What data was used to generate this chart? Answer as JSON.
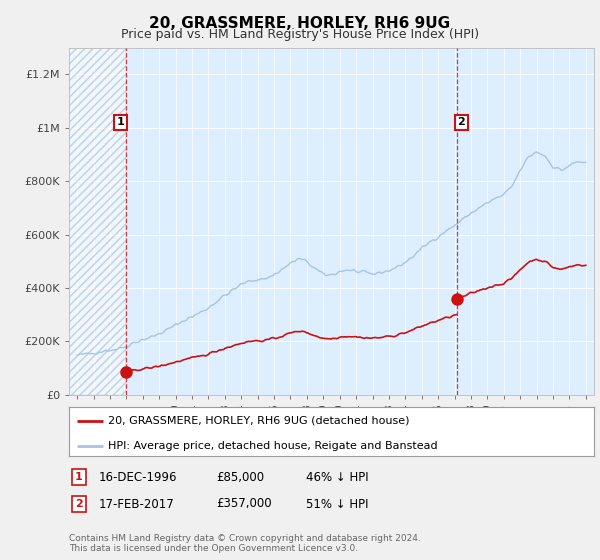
{
  "title": "20, GRASSMERE, HORLEY, RH6 9UG",
  "subtitle": "Price paid vs. HM Land Registry's House Price Index (HPI)",
  "sale1_date": 1996.96,
  "sale1_price": 85000,
  "sale1_label": "1",
  "sale2_date": 2017.12,
  "sale2_price": 357000,
  "sale2_label": "2",
  "hpi_color": "#a8c4e0",
  "price_color": "#cc1111",
  "marker_box_color": "#cc1111",
  "bg_color": "#f0f0f0",
  "plot_bg_color": "#ddeeff",
  "ylim": [
    0,
    1300000
  ],
  "xlim_start": 1993.5,
  "xlim_end": 2025.5,
  "legend_label1": "20, GRASSMERE, HORLEY, RH6 9UG (detached house)",
  "legend_label2": "HPI: Average price, detached house, Reigate and Banstead",
  "footer": "Contains HM Land Registry data © Crown copyright and database right 2024.\nThis data is licensed under the Open Government Licence v3.0.",
  "yticks": [
    0,
    200000,
    400000,
    600000,
    800000,
    1000000,
    1200000
  ],
  "ytick_labels": [
    "£0",
    "£200K",
    "£400K",
    "£600K",
    "£800K",
    "£1M",
    "£1.2M"
  ],
  "xticks": [
    1994,
    1995,
    1996,
    1997,
    1998,
    1999,
    2000,
    2001,
    2002,
    2003,
    2004,
    2005,
    2006,
    2007,
    2008,
    2009,
    2010,
    2011,
    2012,
    2013,
    2014,
    2015,
    2016,
    2017,
    2018,
    2019,
    2020,
    2021,
    2022,
    2023,
    2024,
    2025
  ],
  "hpi_anchors_x": [
    1994.0,
    1994.5,
    1995.0,
    1995.5,
    1996.0,
    1996.5,
    1997.0,
    1997.5,
    1998.0,
    1998.5,
    1999.0,
    1999.5,
    2000.0,
    2000.5,
    2001.0,
    2001.5,
    2002.0,
    2002.5,
    2003.0,
    2003.5,
    2004.0,
    2004.5,
    2005.0,
    2005.5,
    2006.0,
    2006.5,
    2007.0,
    2007.5,
    2008.0,
    2008.5,
    2009.0,
    2009.5,
    2010.0,
    2010.5,
    2011.0,
    2011.5,
    2012.0,
    2012.5,
    2013.0,
    2013.5,
    2014.0,
    2014.5,
    2015.0,
    2015.5,
    2016.0,
    2016.5,
    2017.0,
    2017.5,
    2018.0,
    2018.5,
    2019.0,
    2019.5,
    2020.0,
    2020.5,
    2021.0,
    2021.5,
    2022.0,
    2022.5,
    2023.0,
    2023.5,
    2024.0,
    2024.5,
    2025.0
  ],
  "hpi_anchors_y": [
    148000,
    152000,
    157000,
    163000,
    168000,
    172000,
    182000,
    197000,
    207000,
    216000,
    228000,
    244000,
    261000,
    278000,
    293000,
    308000,
    326000,
    350000,
    372000,
    392000,
    413000,
    426000,
    432000,
    435000,
    450000,
    470000,
    492000,
    510000,
    498000,
    472000,
    450000,
    448000,
    462000,
    468000,
    462000,
    456000,
    452000,
    458000,
    465000,
    478000,
    496000,
    520000,
    548000,
    572000,
    593000,
    614000,
    634000,
    657000,
    680000,
    700000,
    718000,
    735000,
    748000,
    780000,
    840000,
    890000,
    910000,
    895000,
    855000,
    840000,
    858000,
    872000,
    870000
  ]
}
